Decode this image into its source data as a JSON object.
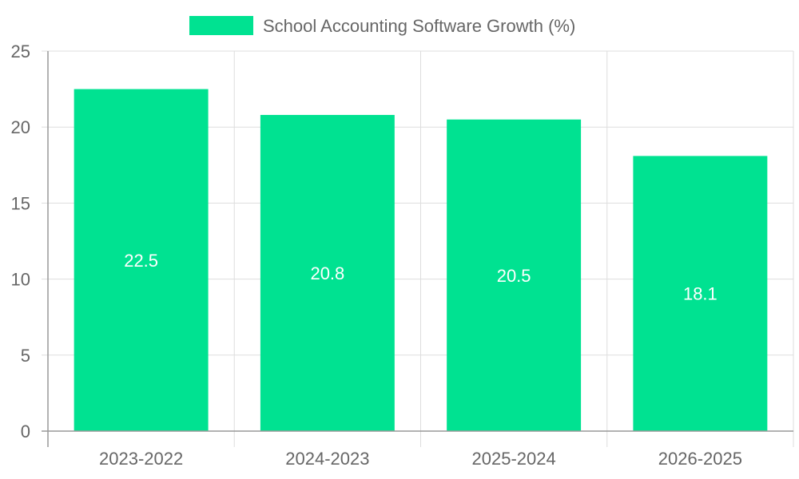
{
  "chart_data": {
    "type": "bar",
    "title": "",
    "legend": [
      {
        "label": "School Accounting Software Growth (%)",
        "color": "#00e291"
      }
    ],
    "legend_position": "top-center",
    "categories": [
      "2023-2022",
      "2024-2023",
      "2025-2024",
      "2026-2025"
    ],
    "series": [
      {
        "name": "School Accounting Software Growth (%)",
        "values": [
          22.5,
          20.8,
          20.5,
          18.1
        ],
        "color": "#00e291"
      }
    ],
    "data_labels": [
      "22.5",
      "20.8",
      "20.5",
      "18.1"
    ],
    "ylim": [
      0,
      25
    ],
    "yticks": [
      0,
      5,
      10,
      15,
      20,
      25
    ],
    "ytick_labels": [
      "0",
      "5",
      "10",
      "15",
      "20",
      "25"
    ],
    "xlabel": "",
    "ylabel": "",
    "grid": true
  }
}
